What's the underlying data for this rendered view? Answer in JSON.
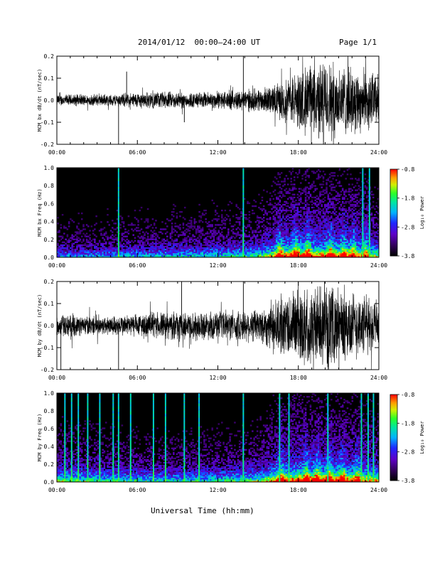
{
  "header": {
    "date_range": "2014/01/12  00:00–24:00 UT",
    "page": "Page 1/1"
  },
  "x_axis_title": "Universal Time (hh:mm)",
  "colorbar": {
    "label": "Log₁₀ Power",
    "ticks": [
      "-0.8",
      "-1.8",
      "-2.8",
      "-3.8"
    ]
  },
  "chart_data": [
    {
      "type": "line",
      "ylabel": "MCM bx dB/dt (nT/sec)",
      "x_range_hours": [
        0,
        24
      ],
      "xticks": [
        "00:00",
        "06:00",
        "12:00",
        "18:00",
        "24:00"
      ],
      "ylim": [
        -0.2,
        0.2
      ],
      "yticks": [
        "0.2",
        "0.1",
        "0.0",
        "-0.1",
        "-0.2"
      ],
      "envelope": {
        "hours": [
          0,
          2,
          4,
          6,
          8,
          10,
          12,
          14,
          15,
          16,
          17,
          18,
          19,
          20,
          21,
          22,
          23,
          24
        ],
        "amplitude": [
          0.03,
          0.03,
          0.03,
          0.04,
          0.045,
          0.04,
          0.045,
          0.055,
          0.06,
          0.07,
          0.11,
          0.15,
          0.19,
          0.2,
          0.19,
          0.17,
          0.16,
          0.13
        ]
      },
      "spikes": [
        {
          "hour": 4.6,
          "value": -0.2
        },
        {
          "hour": 13.9,
          "value": 0.2
        },
        {
          "hour": 13.9,
          "value": -0.2
        },
        {
          "hour": 9.5,
          "value": -0.1
        },
        {
          "hour": 5.2,
          "value": 0.13
        }
      ]
    },
    {
      "type": "heatmap",
      "ylabel": "MCM bx Freq (Hz)",
      "x_range_hours": [
        0,
        24
      ],
      "xticks": [
        "00:00",
        "06:00",
        "12:00",
        "18:00",
        "24:00"
      ],
      "ylim": [
        0.0,
        1.0
      ],
      "yticks": [
        "1.0",
        "0.8",
        "0.6",
        "0.4",
        "0.2",
        "0.0"
      ],
      "color_range_log10": [
        -3.8,
        -0.8
      ],
      "bright_columns_hours": [
        4.6,
        13.9,
        22.8,
        23.3
      ],
      "bursts_hours": [
        16.6,
        17.8,
        18.7,
        20.4,
        21.4,
        22.1,
        23.0
      ],
      "background_power": {
        "hours": [
          0,
          4,
          8,
          12,
          15,
          16.5,
          18,
          20,
          22,
          24
        ],
        "level": [
          0.25,
          0.28,
          0.3,
          0.33,
          0.38,
          0.52,
          0.58,
          0.56,
          0.52,
          0.45
        ]
      }
    },
    {
      "type": "line",
      "ylabel": "MCM by dB/dt (nT/sec)",
      "x_range_hours": [
        0,
        24
      ],
      "xticks": [
        "00:00",
        "06:00",
        "12:00",
        "18:00",
        "24:00"
      ],
      "ylim": [
        -0.2,
        0.2
      ],
      "yticks": [
        "0.2",
        "0.1",
        "0.0",
        "-0.1",
        "-0.2"
      ],
      "envelope": {
        "hours": [
          0,
          2,
          4,
          6,
          8,
          10,
          12,
          14,
          15,
          16,
          17,
          18,
          19,
          20,
          21,
          22,
          23,
          24
        ],
        "amplitude": [
          0.06,
          0.05,
          0.05,
          0.06,
          0.07,
          0.07,
          0.07,
          0.08,
          0.09,
          0.12,
          0.16,
          0.2,
          0.2,
          0.2,
          0.2,
          0.18,
          0.15,
          0.12
        ]
      },
      "spikes": [
        {
          "hour": 4.6,
          "value": -0.2
        },
        {
          "hour": 13.9,
          "value": 0.2
        },
        {
          "hour": 9.3,
          "value": 0.2
        },
        {
          "hour": 0.3,
          "value": -0.2
        }
      ]
    },
    {
      "type": "heatmap",
      "ylabel": "MCM by Freq (Hz)",
      "x_range_hours": [
        0,
        24
      ],
      "xticks": [
        "00:00",
        "06:00",
        "12:00",
        "18:00",
        "24:00"
      ],
      "ylim": [
        0.0,
        1.0
      ],
      "yticks": [
        "1.0",
        "0.8",
        "0.6",
        "0.4",
        "0.2",
        "0.0"
      ],
      "color_range_log10": [
        -3.8,
        -0.8
      ],
      "bright_columns_hours": [
        0.6,
        1.1,
        1.6,
        2.3,
        3.2,
        4.2,
        4.6,
        5.5,
        7.2,
        8.1,
        9.5,
        10.6,
        13.9,
        16.6,
        17.3,
        20.2,
        22.7,
        23.2,
        23.6
      ],
      "bursts_hours": [
        16.7,
        18.6,
        19.4,
        20.3,
        21.3,
        22.4
      ],
      "background_power": {
        "hours": [
          0,
          4,
          8,
          12,
          15,
          16.5,
          18,
          20,
          22,
          24
        ],
        "level": [
          0.42,
          0.36,
          0.33,
          0.35,
          0.4,
          0.55,
          0.6,
          0.58,
          0.55,
          0.5
        ]
      }
    }
  ]
}
